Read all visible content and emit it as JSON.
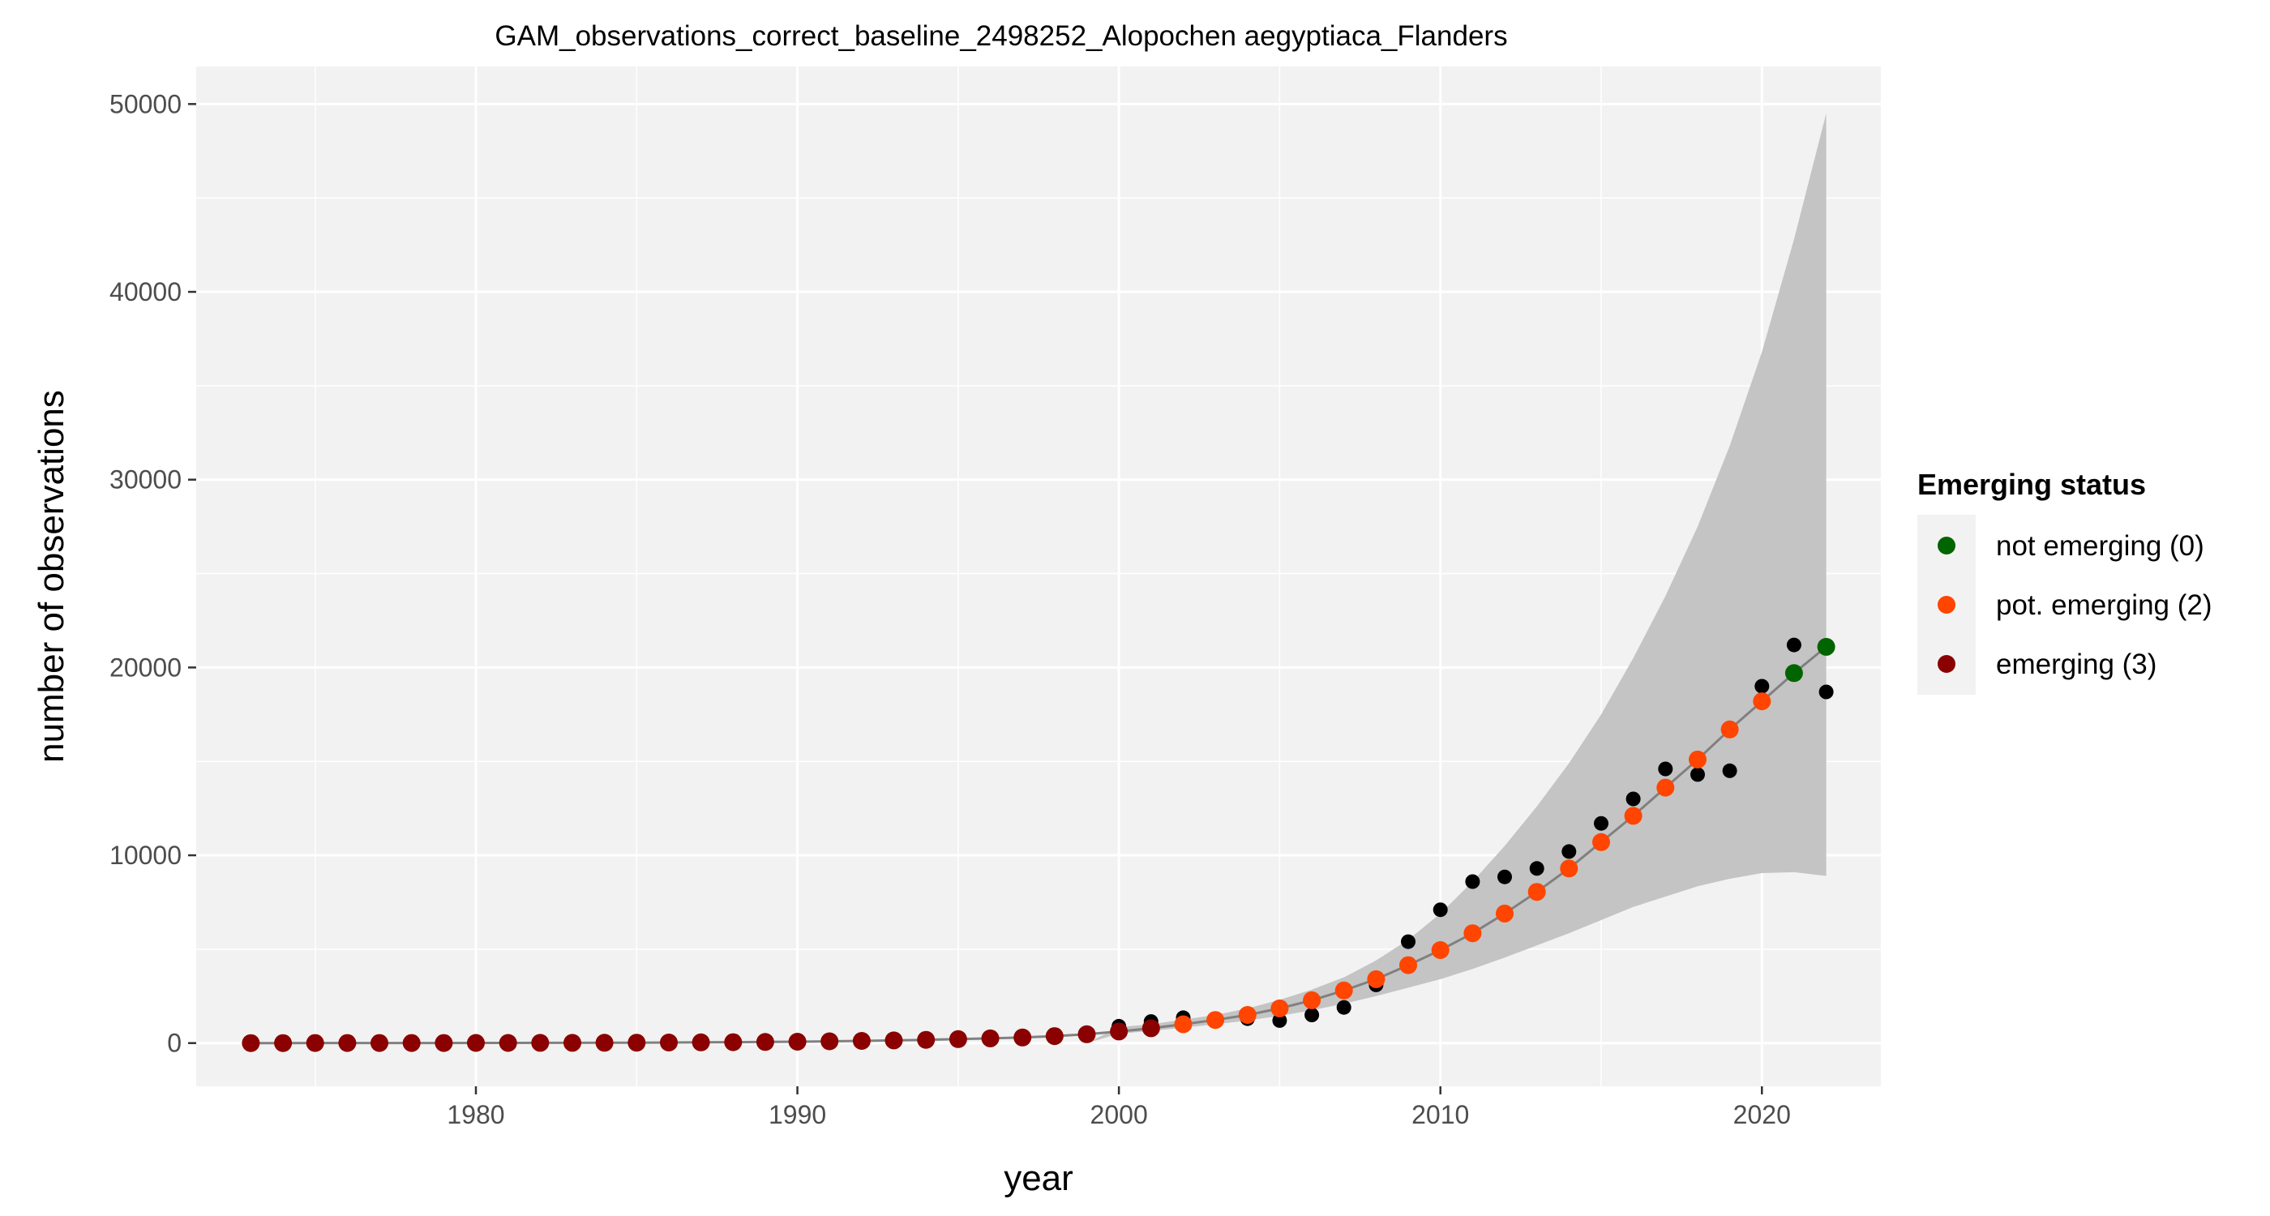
{
  "chart_data": {
    "type": "scatter",
    "title": "GAM_observations_correct_baseline_2498252_Alopochen aegyptiaca_Flanders",
    "xlabel": "year",
    "ylabel": "number of observations",
    "xlim": [
      1971.3,
      2023.7
    ],
    "ylim": [
      -2300,
      52000
    ],
    "xticks": [
      "1980",
      "1990",
      "2000",
      "2010",
      "2020"
    ],
    "yticks": [
      "0",
      "10000",
      "20000",
      "30000",
      "40000",
      "50000"
    ],
    "grid": true,
    "legend": {
      "title": "Emerging status",
      "placement": "right",
      "entries": [
        {
          "label": "not emerging (0)",
          "color": "#006400"
        },
        {
          "label": "pot. emerging (2)",
          "color": "#FF4500"
        },
        {
          "label": "emerging (3)",
          "color": "#8B0000"
        }
      ]
    },
    "colors": {
      "observed": "#000000",
      "fit_line": "#808080",
      "ribbon": "#c4c4c4",
      "panel": "#f2f2f2",
      "grid": "#ffffff"
    },
    "observed": {
      "x": [
        1973,
        1974,
        1975,
        1976,
        1977,
        1978,
        1979,
        1980,
        1981,
        1982,
        1983,
        1984,
        1985,
        1986,
        1987,
        1988,
        1989,
        1990,
        1991,
        1992,
        1993,
        1994,
        1995,
        1996,
        1997,
        1998,
        1999,
        2000,
        2001,
        2002,
        2003,
        2004,
        2005,
        2006,
        2007,
        2008,
        2009,
        2010,
        2011,
        2012,
        2013,
        2014,
        2015,
        2016,
        2017,
        2018,
        2019,
        2020,
        2021,
        2022
      ],
      "y": [
        2,
        1,
        3,
        2,
        1,
        4,
        2,
        3,
        5,
        4,
        6,
        8,
        10,
        15,
        20,
        30,
        45,
        60,
        80,
        100,
        120,
        150,
        180,
        200,
        260,
        380,
        480,
        900,
        1150,
        1350,
        1150,
        1300,
        1200,
        1500,
        1900,
        3100,
        5400,
        7100,
        8600,
        8850,
        9300,
        10200,
        11700,
        13000,
        14600,
        14300,
        14500,
        19000,
        21200,
        18700
      ]
    },
    "fitted": {
      "x": [
        1973,
        1974,
        1975,
        1976,
        1977,
        1978,
        1979,
        1980,
        1981,
        1982,
        1983,
        1984,
        1985,
        1986,
        1987,
        1988,
        1989,
        1990,
        1991,
        1992,
        1993,
        1994,
        1995,
        1996,
        1997,
        1998,
        1999,
        2000,
        2001,
        2002,
        2003,
        2004,
        2005,
        2006,
        2007,
        2008,
        2009,
        2010,
        2011,
        2012,
        2013,
        2014,
        2015,
        2016,
        2017,
        2018,
        2019,
        2020,
        2021,
        2022
      ],
      "y": [
        2,
        2,
        3,
        3,
        4,
        5,
        6,
        8,
        10,
        12,
        15,
        19,
        24,
        30,
        38,
        48,
        60,
        75,
        95,
        118,
        145,
        175,
        210,
        250,
        300,
        370,
        470,
        620,
        790,
        1000,
        1230,
        1500,
        1850,
        2280,
        2800,
        3400,
        4150,
        4950,
        5850,
        6900,
        8050,
        9300,
        10700,
        12100,
        13600,
        15100,
        16700,
        18200,
        19700,
        21100
      ],
      "status": [
        3,
        3,
        3,
        3,
        3,
        3,
        3,
        3,
        3,
        3,
        3,
        3,
        3,
        3,
        3,
        3,
        3,
        3,
        3,
        3,
        3,
        3,
        3,
        3,
        3,
        3,
        3,
        3,
        3,
        2,
        2,
        2,
        2,
        2,
        2,
        2,
        2,
        2,
        2,
        2,
        2,
        2,
        2,
        2,
        2,
        2,
        2,
        2,
        0,
        0
      ],
      "lower": [
        0,
        0,
        0,
        0,
        0,
        0,
        0,
        0,
        0,
        0,
        0,
        0,
        0,
        0,
        0,
        0,
        0,
        0,
        0,
        0,
        0,
        0,
        0,
        0,
        0,
        0,
        0,
        500,
        650,
        820,
        1000,
        1200,
        1450,
        1750,
        2100,
        2500,
        2950,
        3400,
        3950,
        4550,
        5200,
        5850,
        6550,
        7250,
        7800,
        8350,
        8750,
        9050,
        9100,
        8900
      ],
      "upper": [
        0,
        0,
        0,
        0,
        0,
        0,
        0,
        0,
        0,
        0,
        0,
        0,
        0,
        0,
        0,
        0,
        0,
        0,
        0,
        0,
        0,
        0,
        0,
        0,
        0,
        0,
        0,
        850,
        1000,
        1250,
        1500,
        1850,
        2300,
        2850,
        3500,
        4400,
        5500,
        6900,
        8600,
        10500,
        12600,
        14900,
        17500,
        20500,
        23800,
        27500,
        31800,
        36800,
        42800,
        49500
      ]
    }
  }
}
